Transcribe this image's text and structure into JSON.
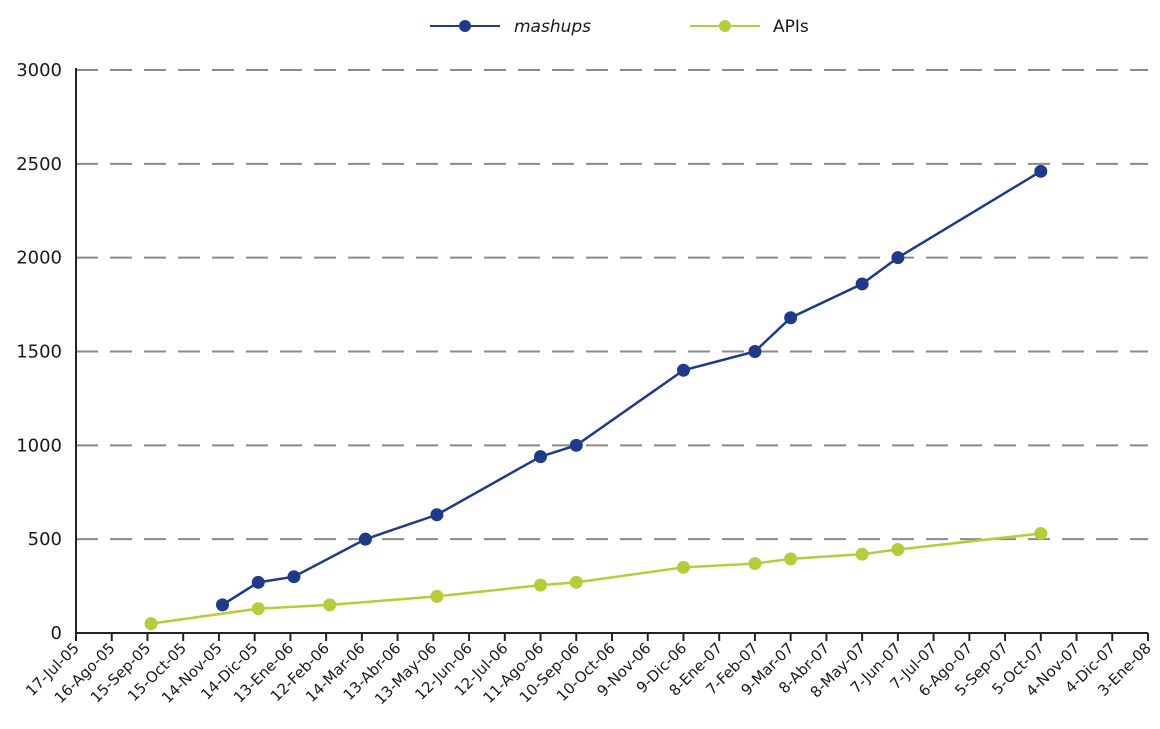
{
  "chart_data": {
    "type": "line",
    "title": "",
    "xlabel": "",
    "ylabel": "",
    "ylim": [
      0,
      3000
    ],
    "yticks": [
      0,
      500,
      1000,
      1500,
      2000,
      2500,
      3000
    ],
    "grid": "horizontal dashed",
    "legend_position": "top-center",
    "categories": [
      "17-Jul-05",
      "16-Ago-05",
      "15-Sep-05",
      "15-Oct-05",
      "14-Nov-05",
      "14-Dic-05",
      "13-Ene-06",
      "12-Feb-06",
      "14-Mar-06",
      "13-Abr-06",
      "13-May-06",
      "12-Jun-06",
      "12-Jul-06",
      "11-Ago-06",
      "10-Sep-06",
      "10-Oct-06",
      "9-Nov-06",
      "9-Dic-06",
      "8-Ene-07",
      "7-Feb-07",
      "9-Mar-07",
      "8-Abr-07",
      "8-May-07",
      "7-Jun-07",
      "7-Jul-07",
      "6-Ago-07",
      "5-Sep-07",
      "5-Oct-07",
      "4-Nov-07",
      "4-Dic-07",
      "3-Ene-08"
    ],
    "series": [
      {
        "name": "mashups",
        "color": "#1f3a8a",
        "points": [
          {
            "x": 4.1,
            "y": 150
          },
          {
            "x": 5.1,
            "y": 270
          },
          {
            "x": 6.1,
            "y": 300
          },
          {
            "x": 8.1,
            "y": 500
          },
          {
            "x": 10.1,
            "y": 630
          },
          {
            "x": 13.0,
            "y": 940
          },
          {
            "x": 14.0,
            "y": 1000
          },
          {
            "x": 17.0,
            "y": 1400
          },
          {
            "x": 19.0,
            "y": 1500
          },
          {
            "x": 20.0,
            "y": 1680
          },
          {
            "x": 22.0,
            "y": 1860
          },
          {
            "x": 23.0,
            "y": 2000
          },
          {
            "x": 27.0,
            "y": 2460
          }
        ]
      },
      {
        "name": "APIs",
        "color": "#b8cc3a",
        "points": [
          {
            "x": 2.1,
            "y": 50
          },
          {
            "x": 5.1,
            "y": 130
          },
          {
            "x": 7.1,
            "y": 150
          },
          {
            "x": 10.1,
            "y": 195
          },
          {
            "x": 13.0,
            "y": 255
          },
          {
            "x": 14.0,
            "y": 270
          },
          {
            "x": 17.0,
            "y": 350
          },
          {
            "x": 19.0,
            "y": 370
          },
          {
            "x": 20.0,
            "y": 395
          },
          {
            "x": 22.0,
            "y": 420
          },
          {
            "x": 23.0,
            "y": 445
          },
          {
            "x": 27.0,
            "y": 530
          }
        ]
      }
    ]
  },
  "legend": {
    "mashups_label": "mashups",
    "apis_label": "APIs"
  }
}
